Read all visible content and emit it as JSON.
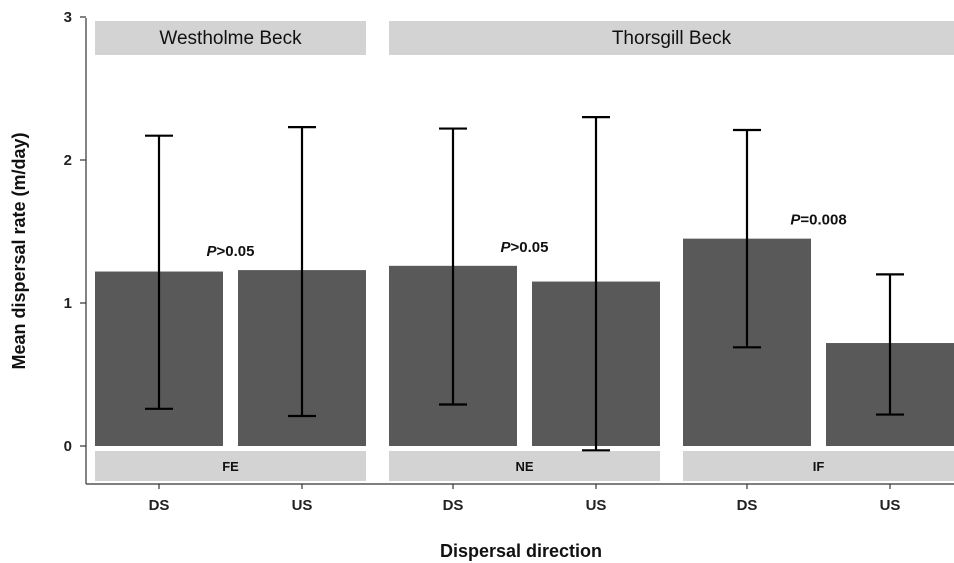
{
  "chart_data": {
    "type": "bar",
    "xlabel": "Dispersal direction",
    "ylabel": "Mean dispersal rate (m/day)",
    "ylim": [
      0,
      3
    ],
    "yticks": [
      "0",
      "1",
      "2",
      "3"
    ],
    "grid": false,
    "top_strips": [
      {
        "label": "Westholme Beck",
        "panels": [
          0
        ]
      },
      {
        "label": "Thorsgill Beck",
        "panels": [
          1,
          2
        ]
      }
    ],
    "panels": [
      {
        "strip": "FE",
        "categories": [
          "DS",
          "US"
        ],
        "values": [
          1.22,
          1.23
        ],
        "error_low": [
          0.26,
          0.21
        ],
        "error_high": [
          2.17,
          2.23
        ],
        "p_italic": "P",
        "p_rest": ">0.05"
      },
      {
        "strip": "NE",
        "categories": [
          "DS",
          "US"
        ],
        "values": [
          1.26,
          1.15
        ],
        "error_low": [
          0.29,
          -0.03
        ],
        "error_high": [
          2.22,
          2.3
        ],
        "p_italic": "P",
        "p_rest": ">0.05"
      },
      {
        "strip": "IF",
        "categories": [
          "DS",
          "US"
        ],
        "values": [
          1.45,
          0.72
        ],
        "error_low": [
          0.69,
          0.22
        ],
        "error_high": [
          2.21,
          1.2
        ],
        "p_italic": "P",
        "p_rest": "=0.008"
      }
    ],
    "colors": {
      "bar": "#595959",
      "strip": "#d3d3d3",
      "error": "#000000",
      "axis": "#333333"
    }
  }
}
